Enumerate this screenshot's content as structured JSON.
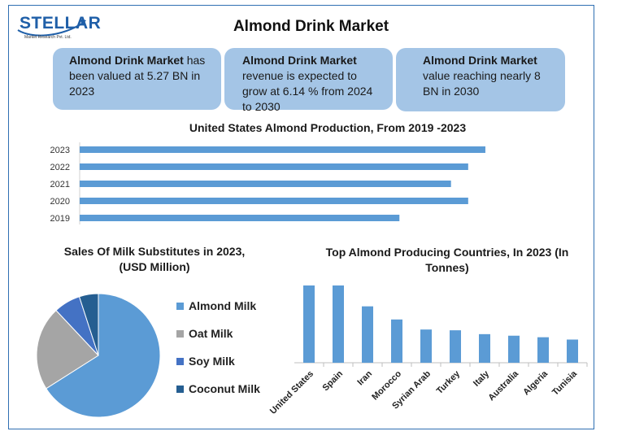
{
  "logo": {
    "word": "STELLAR",
    "tagline": "Market Research Pvt. Ltd."
  },
  "title": "Almond Drink Market",
  "info_boxes": [
    {
      "bold": "Almond Drink Market",
      "text": " has been valued at 5.27 BN in 2023"
    },
    {
      "bold": "Almond Drink Market",
      "text": " revenue is expected to grow at 6.14 % from 2024 to 2030"
    },
    {
      "bold": "Almond Drink Market",
      "text": " value reaching nearly 8 BN in 2030"
    }
  ],
  "colors": {
    "primary_blue": "#5b9bd5",
    "oat_gray": "#a5a5a5",
    "soy_blue": "#4472c4",
    "coconut_navy": "#255e91",
    "box_fill": "#a4c5e6",
    "frame": "#2f6fb2"
  },
  "chart_data": [
    {
      "type": "bar",
      "orientation": "horizontal",
      "title": "United States Almond Production, From 2019 -2023",
      "categories": [
        "2023",
        "2022",
        "2021",
        "2020",
        "2019"
      ],
      "values": [
        2.36,
        2.26,
        2.16,
        2.26,
        1.86
      ],
      "xlim": [
        0,
        2.8
      ],
      "grid": false
    },
    {
      "type": "pie",
      "title": "Sales Of Milk Substitutes in 2023, (USD Million)",
      "labels": [
        "Almond Milk",
        "Oat Milk",
        "Soy Milk",
        "Coconut Milk"
      ],
      "values": [
        66,
        22,
        7,
        5
      ],
      "legend": "right"
    },
    {
      "type": "bar",
      "title": "Top Almond Producing Countries, In 2023 (In Tonnes)",
      "categories": [
        "United States",
        "Spain",
        "Iran",
        "Morocco",
        "Syrian Arab",
        "Turkey",
        "Italy",
        "Australia",
        "Algeria",
        "Tunisia"
      ],
      "values": [
        100,
        100,
        73,
        56,
        43,
        42,
        37,
        35,
        33,
        30
      ],
      "ylim": [
        0,
        100
      ],
      "grid": false
    }
  ]
}
